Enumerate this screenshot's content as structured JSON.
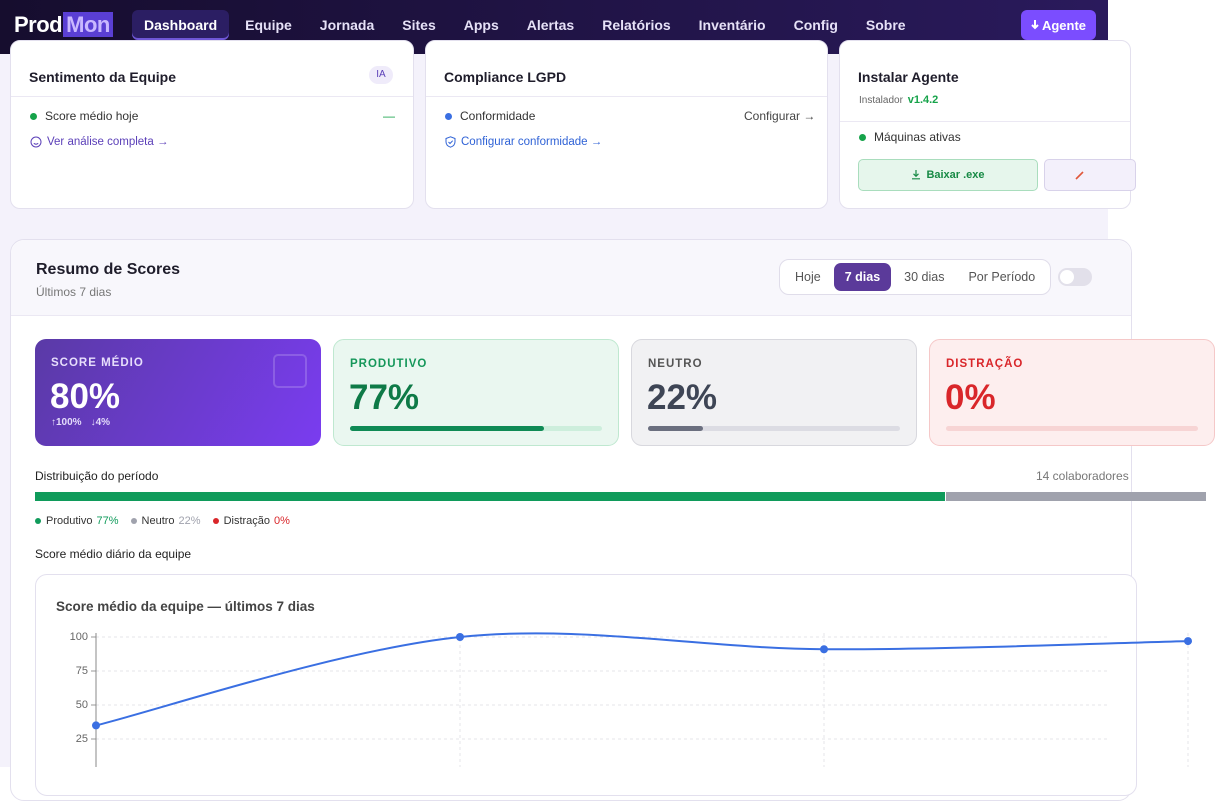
{
  "nav": {
    "brand": {
      "a": "Prod",
      "b": "Mon"
    },
    "items": [
      "Dashboard",
      "Equipe",
      "Jornada",
      "Sites",
      "Apps",
      "Alertas",
      "Relatórios",
      "Inventário",
      "Config",
      "Sobre"
    ],
    "button": "Agente"
  },
  "cards": {
    "sentiment": {
      "title": "Sentimento da Equipe",
      "badge": "IA",
      "row_label": "Score médio hoje",
      "row_value": "—",
      "link": "Ver análise completa →"
    },
    "compliance": {
      "title": "Compliance LGPD",
      "row_label": "Conformidade",
      "row_action": "Configurar →",
      "link": "Configurar conformidade →"
    },
    "agent": {
      "title": "Instalar Agente",
      "installer_label": "Instalador",
      "version": "v1.4.2",
      "row_label": "Máquinas ativas",
      "download": "Baixar .exe"
    }
  },
  "scores": {
    "title": "Resumo de Scores",
    "subtitle": "Últimos 7 dias",
    "tabs": [
      "Hoje",
      "7 dias",
      "30 dias",
      "Por Período"
    ],
    "kpis": [
      {
        "label": "SCORE MÉDIO",
        "value": 80,
        "value_label": "80%",
        "max_label": "↑100%",
        "min_label": "↓4%"
      },
      {
        "label": "PRODUTIVO",
        "value": 77,
        "value_label": "77%"
      },
      {
        "label": "NEUTRO",
        "value": 22,
        "value_label": "22%"
      },
      {
        "label": "DISTRAÇÃO",
        "value": 0,
        "value_label": "0%"
      }
    ],
    "distribution": {
      "title": "Distribuição do período",
      "count": "14 colaboradores",
      "legend": [
        "Produtivo",
        "Neutro",
        "Distração"
      ]
    },
    "chart_label": "Score médio diário da equipe"
  },
  "chart_data": {
    "type": "line",
    "title": "Score médio da equipe — últimos 7 dias",
    "categories": [
      null,
      null,
      null,
      null
    ],
    "values": [
      35,
      100,
      91,
      97
    ],
    "color": "#3a6fe2",
    "ylim": [
      0,
      100
    ],
    "yticks": [
      25,
      50,
      75,
      100
    ],
    "grid": true
  }
}
